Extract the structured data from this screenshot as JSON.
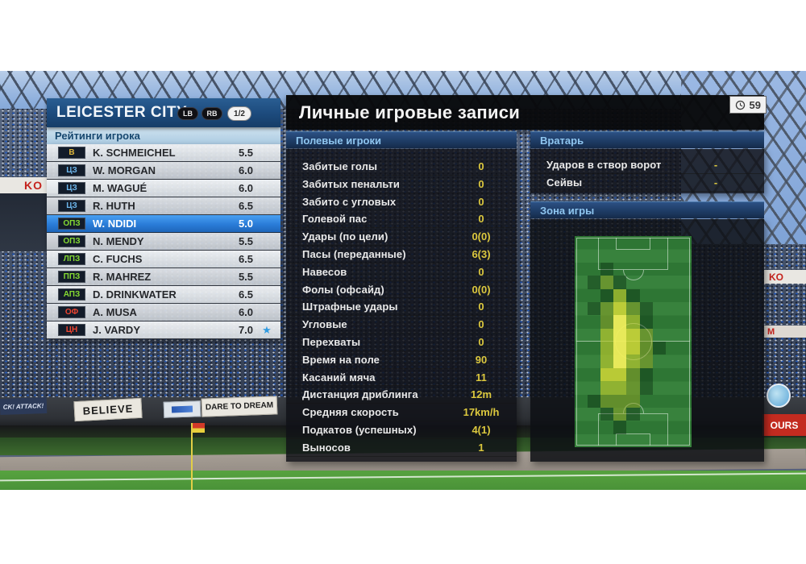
{
  "team_panel": {
    "team_name": "LEICESTER CITY",
    "side_badges": [
      "LB",
      "RB"
    ],
    "page_indicator": "1/2",
    "ratings_header": "Рейтинги игрока",
    "players": [
      {
        "pos": "В",
        "role": "gk",
        "name": "K. SCHMEICHEL",
        "rating": "5.5",
        "selected": false,
        "starred": false
      },
      {
        "pos": "ЦЗ",
        "role": "df",
        "name": "W. MORGAN",
        "rating": "6.0",
        "selected": false,
        "starred": false
      },
      {
        "pos": "ЦЗ",
        "role": "df",
        "name": "M. WAGUÉ",
        "rating": "6.0",
        "selected": false,
        "starred": false
      },
      {
        "pos": "ЦЗ",
        "role": "df",
        "name": "R. HUTH",
        "rating": "6.5",
        "selected": false,
        "starred": false
      },
      {
        "pos": "ОПЗ",
        "role": "mf",
        "name": "W. NDIDI",
        "rating": "5.0",
        "selected": true,
        "starred": false
      },
      {
        "pos": "ОПЗ",
        "role": "mf",
        "name": "N. MENDY",
        "rating": "5.5",
        "selected": false,
        "starred": false
      },
      {
        "pos": "ЛПЗ",
        "role": "mf",
        "name": "C. FUCHS",
        "rating": "6.5",
        "selected": false,
        "starred": false
      },
      {
        "pos": "ППЗ",
        "role": "mf",
        "name": "R. MAHREZ",
        "rating": "5.5",
        "selected": false,
        "starred": false
      },
      {
        "pos": "АПЗ",
        "role": "mf",
        "name": "D. DRINKWATER",
        "rating": "6.5",
        "selected": false,
        "starred": false
      },
      {
        "pos": "ОФ",
        "role": "fw",
        "name": "A. MUSA",
        "rating": "6.0",
        "selected": false,
        "starred": false
      },
      {
        "pos": "ЦН",
        "role": "fw",
        "name": "J. VARDY",
        "rating": "7.0",
        "selected": false,
        "starred": true
      }
    ],
    "role_colors": {
      "gk": "#e0b73c",
      "df": "#6db6ec",
      "mf": "#85da32",
      "fw": "#ef4430"
    }
  },
  "main_panel": {
    "title": "Личные игровые записи",
    "clock_value": "59",
    "field_players": {
      "header": "Полевые игроки",
      "stats": [
        {
          "label": "Забитые голы",
          "value": "0"
        },
        {
          "label": "Забитых пенальти",
          "value": "0"
        },
        {
          "label": "Забито с угловых",
          "value": "0"
        },
        {
          "label": "Голевой пас",
          "value": "0"
        },
        {
          "label": "Удары (по цели)",
          "value": "0(0)"
        },
        {
          "label": "Пасы (переданные)",
          "value": "6(3)"
        },
        {
          "label": "Навесов",
          "value": "0"
        },
        {
          "label": "Фолы (офсайд)",
          "value": "0(0)"
        },
        {
          "label": "Штрафные удары",
          "value": "0"
        },
        {
          "label": "Угловые",
          "value": "0"
        },
        {
          "label": "Перехваты",
          "value": "0"
        },
        {
          "label": "Время на поле",
          "value": "90"
        },
        {
          "label": "Касаний мяча",
          "value": "11"
        },
        {
          "label": "Дистанция дриблинга",
          "value": "12m"
        },
        {
          "label": "Средняя скорость",
          "value": "17km/h"
        },
        {
          "label": "Подкатов (успешных)",
          "value": "4(1)"
        },
        {
          "label": "Выносов",
          "value": "1"
        }
      ]
    },
    "goalkeeper": {
      "header": "Вратарь",
      "stats": [
        {
          "label": "Ударов в створ ворот",
          "value": "-"
        },
        {
          "label": "Сейвы",
          "value": "-"
        }
      ]
    },
    "zone_header": "Зона игры"
  },
  "chart_data": {
    "type": "heatmap",
    "title": "Зона игры",
    "grid_cols": 9,
    "grid_rows": 16,
    "intensity_scale": [
      0,
      1,
      2,
      3,
      4,
      5
    ],
    "intensity_rows": [
      "000000000",
      "000000000",
      "001000000",
      "012100000",
      "001310000",
      "012421000",
      "002531000",
      "003542000",
      "003542100",
      "003532000",
      "004421000",
      "003321000",
      "012220000",
      "001210000",
      "000100000",
      "000000000"
    ]
  },
  "background": {
    "banners": {
      "attack": "CK! ATTACK!",
      "believe": "BELIEVE",
      "dare_to_dream": "DARE TO DREAM",
      "ours": "OURS",
      "ko": "KO",
      "m": "M"
    }
  },
  "colors": {
    "selected_row": "#2e7fd9",
    "stat_value": "#dcc83e",
    "header_blue": "#1c4a7c",
    "section_header_text": "#8fc6f0",
    "star": "#2f9ae0"
  }
}
